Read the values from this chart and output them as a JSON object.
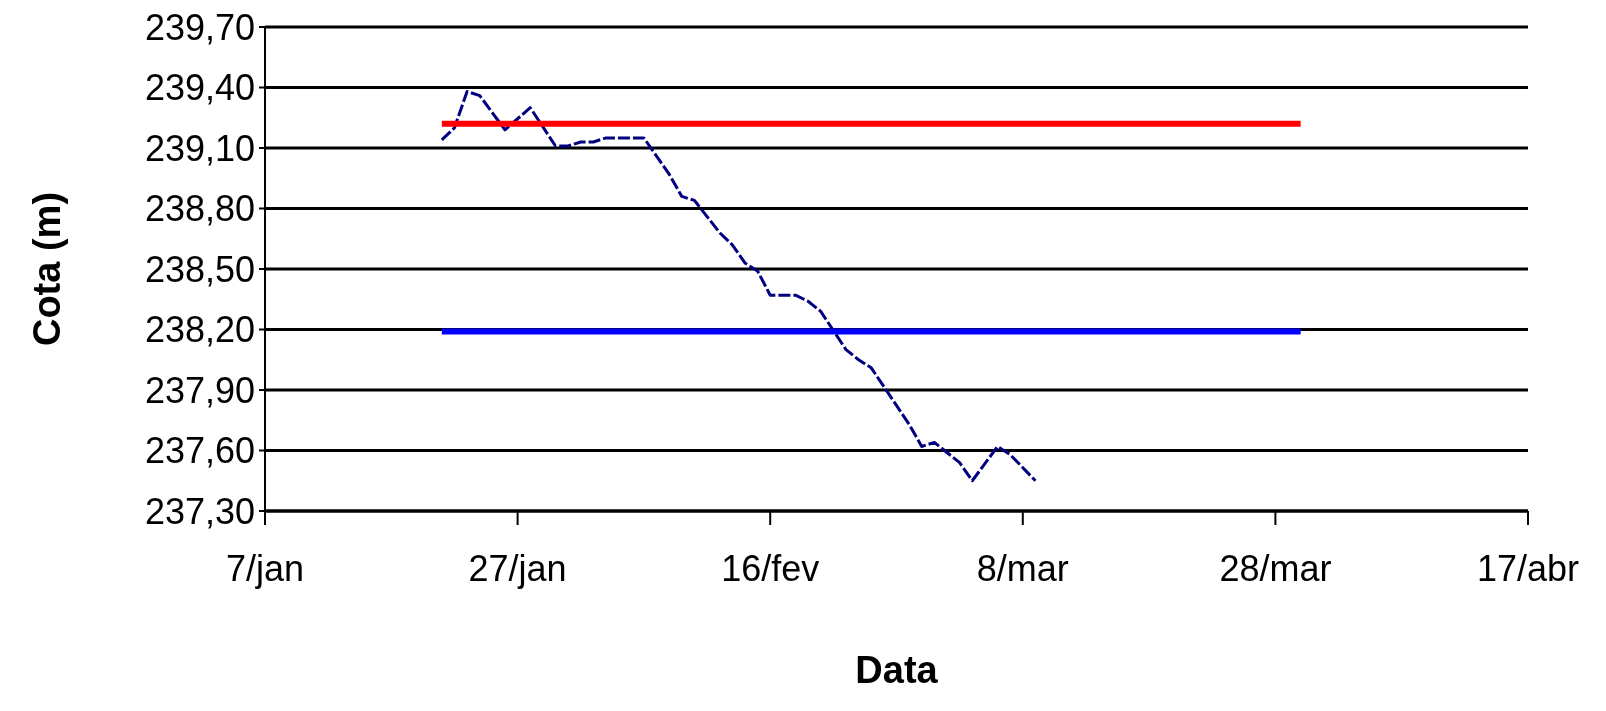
{
  "chart_data": {
    "type": "line",
    "xlabel": "Data",
    "ylabel": "Cota (m)",
    "ylim": [
      237.3,
      239.7
    ],
    "yticks": [
      {
        "value": 237.3,
        "label": "237,30"
      },
      {
        "value": 237.6,
        "label": "237,60"
      },
      {
        "value": 237.9,
        "label": "237,90"
      },
      {
        "value": 238.2,
        "label": "238,20"
      },
      {
        "value": 238.5,
        "label": "238,50"
      },
      {
        "value": 238.8,
        "label": "238,80"
      },
      {
        "value": 239.1,
        "label": "239,10"
      },
      {
        "value": 239.4,
        "label": "239,40"
      },
      {
        "value": 239.7,
        "label": "239,70"
      }
    ],
    "xlim": [
      "--01-07",
      "--04-17"
    ],
    "xticks": [
      {
        "value": "--01-07",
        "label": "7/jan"
      },
      {
        "value": "--01-27",
        "label": "27/jan"
      },
      {
        "value": "--02-16",
        "label": "16/fev"
      },
      {
        "value": "--03-08",
        "label": "8/mar"
      },
      {
        "value": "--03-28",
        "label": "28/mar"
      },
      {
        "value": "--04-17",
        "label": "17/abr"
      }
    ],
    "grid": "y",
    "series": [
      {
        "color": "#000080",
        "line_style": "dashed",
        "x": [
          "--01-21",
          "--01-22",
          "--01-23",
          "--01-24",
          "--01-26",
          "--01-28",
          "--01-30",
          "--01-31",
          "--02-01",
          "--02-02",
          "--02-03",
          "--02-06",
          "--02-08",
          "--02-09",
          "--02-10",
          "--02-12",
          "--02-13",
          "--02-14",
          "--02-15",
          "--02-16",
          "--02-18",
          "--02-19",
          "--02-20",
          "--02-22",
          "--02-23",
          "--02-24",
          "--02-27",
          "--02-28",
          "--03-01",
          "--03-03",
          "--03-04",
          "--03-06",
          "--03-07",
          "--03-09"
        ],
        "values": [
          239.14,
          239.2,
          239.38,
          239.36,
          239.19,
          239.3,
          239.11,
          239.11,
          239.13,
          239.13,
          239.15,
          239.15,
          238.97,
          238.86,
          238.84,
          238.68,
          238.62,
          238.53,
          238.49,
          238.37,
          238.37,
          238.34,
          238.29,
          238.1,
          238.05,
          238.01,
          237.73,
          237.62,
          237.64,
          237.54,
          237.45,
          237.62,
          237.58,
          237.45
        ]
      },
      {
        "color": "#ff0000",
        "line_style": "solid",
        "x": [
          "--01-21",
          "--03-30"
        ],
        "values": [
          239.22,
          239.22
        ]
      },
      {
        "color": "#0000ff",
        "line_style": "solid",
        "x": [
          "--01-21",
          "--03-30"
        ],
        "values": [
          238.19,
          238.19
        ]
      }
    ]
  }
}
